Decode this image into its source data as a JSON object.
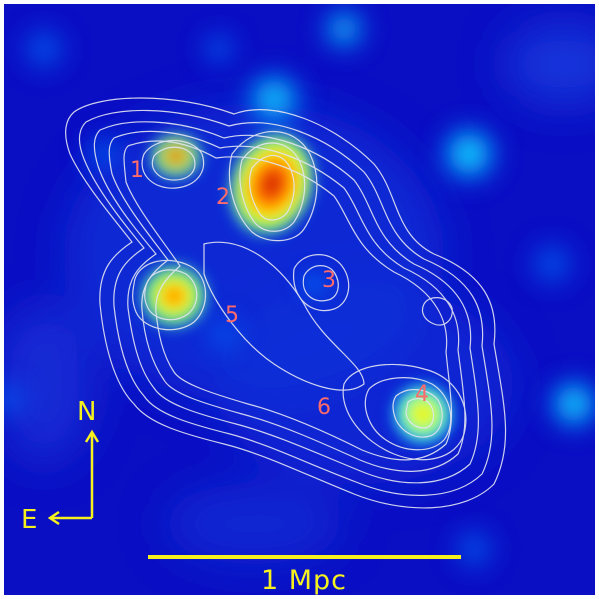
{
  "image": {
    "type": "density-map-with-contours",
    "background_color": "#0b12c8",
    "contour_color": "#e8e8f0",
    "label_color": "#ff6a6a",
    "annotation_color": "#f5f01e"
  },
  "subclusters": [
    {
      "id": "1",
      "label": "1"
    },
    {
      "id": "2",
      "label": "2"
    },
    {
      "id": "3",
      "label": "3"
    },
    {
      "id": "4",
      "label": "4"
    },
    {
      "id": "5",
      "label": "5"
    },
    {
      "id": "6",
      "label": "6"
    }
  ],
  "compass": {
    "north": "N",
    "east": "E"
  },
  "scale_bar": {
    "label": "1 Mpc"
  }
}
